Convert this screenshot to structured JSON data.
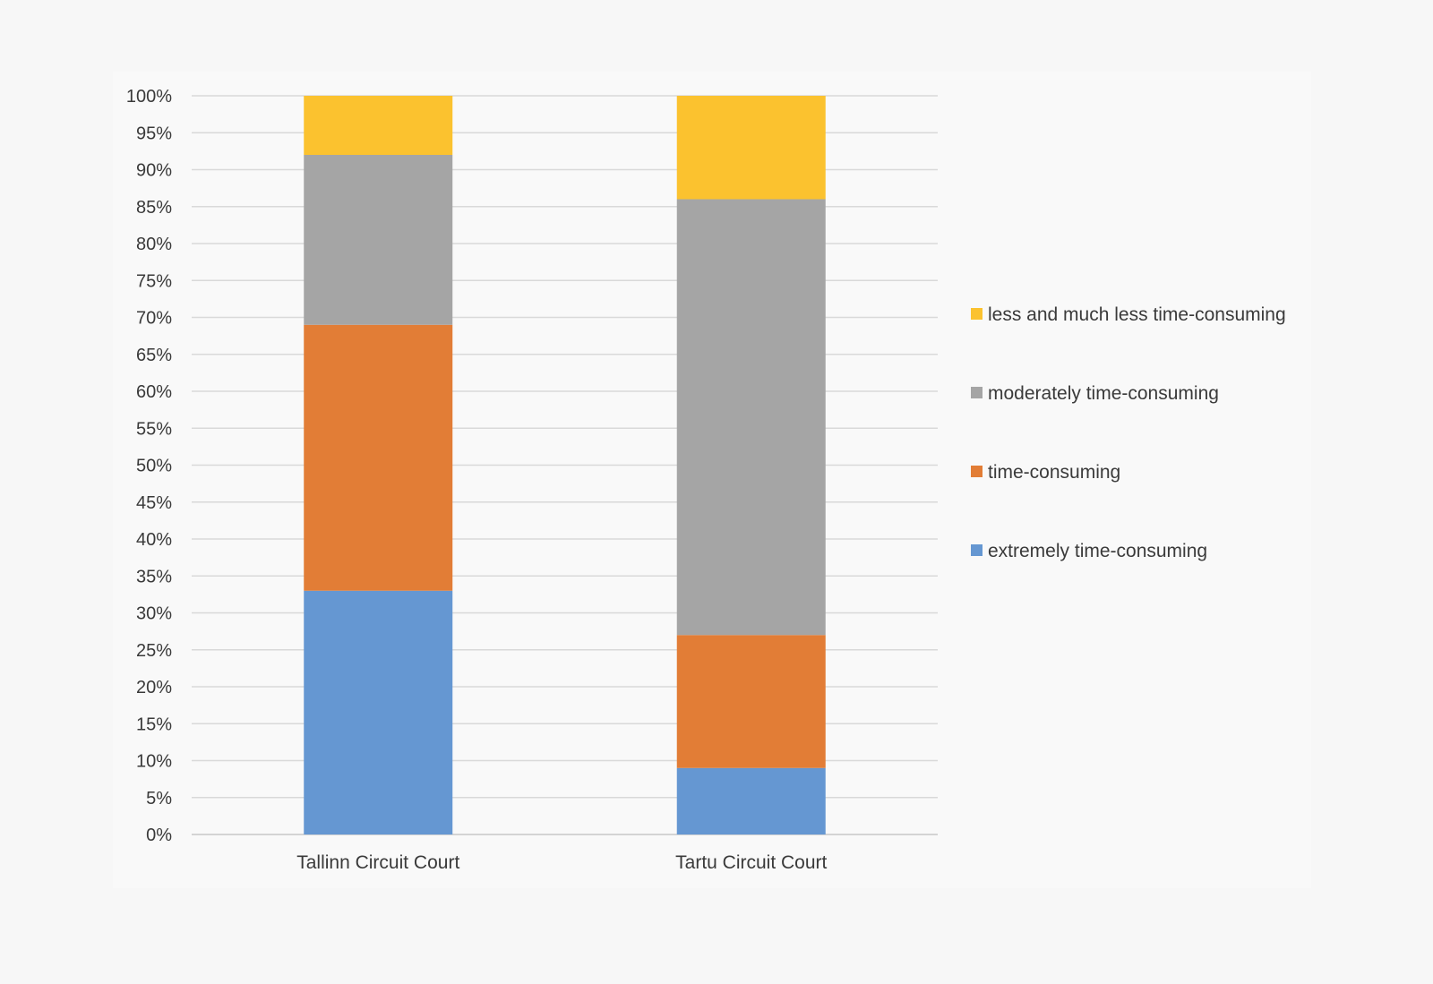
{
  "chart_data": {
    "type": "bar",
    "stacked": true,
    "percent": true,
    "categories": [
      "Tallinn Circuit Court",
      "Tartu Circuit Court"
    ],
    "series": [
      {
        "name": "extremely time-consuming",
        "color": "#6597d2",
        "values": [
          33,
          9
        ]
      },
      {
        "name": "time-consuming",
        "color": "#e27d36",
        "values": [
          36,
          18
        ]
      },
      {
        "name": "moderately time-consuming",
        "color": "#a5a5a5",
        "values": [
          23,
          59
        ]
      },
      {
        "name": "less and much less time-consuming",
        "color": "#fbc22f",
        "values": [
          8,
          14
        ]
      }
    ],
    "y_ticks": [
      "0%",
      "5%",
      "10%",
      "15%",
      "20%",
      "25%",
      "30%",
      "35%",
      "40%",
      "45%",
      "50%",
      "55%",
      "60%",
      "65%",
      "70%",
      "75%",
      "80%",
      "85%",
      "90%",
      "95%",
      "100%"
    ],
    "ylim": [
      0,
      100
    ],
    "grid": true,
    "legend_position": "right",
    "legend_order": [
      "less and much less time-consuming",
      "moderately time-consuming",
      "time-consuming",
      "extremely time-consuming"
    ],
    "title": "",
    "xlabel": "",
    "ylabel": ""
  }
}
